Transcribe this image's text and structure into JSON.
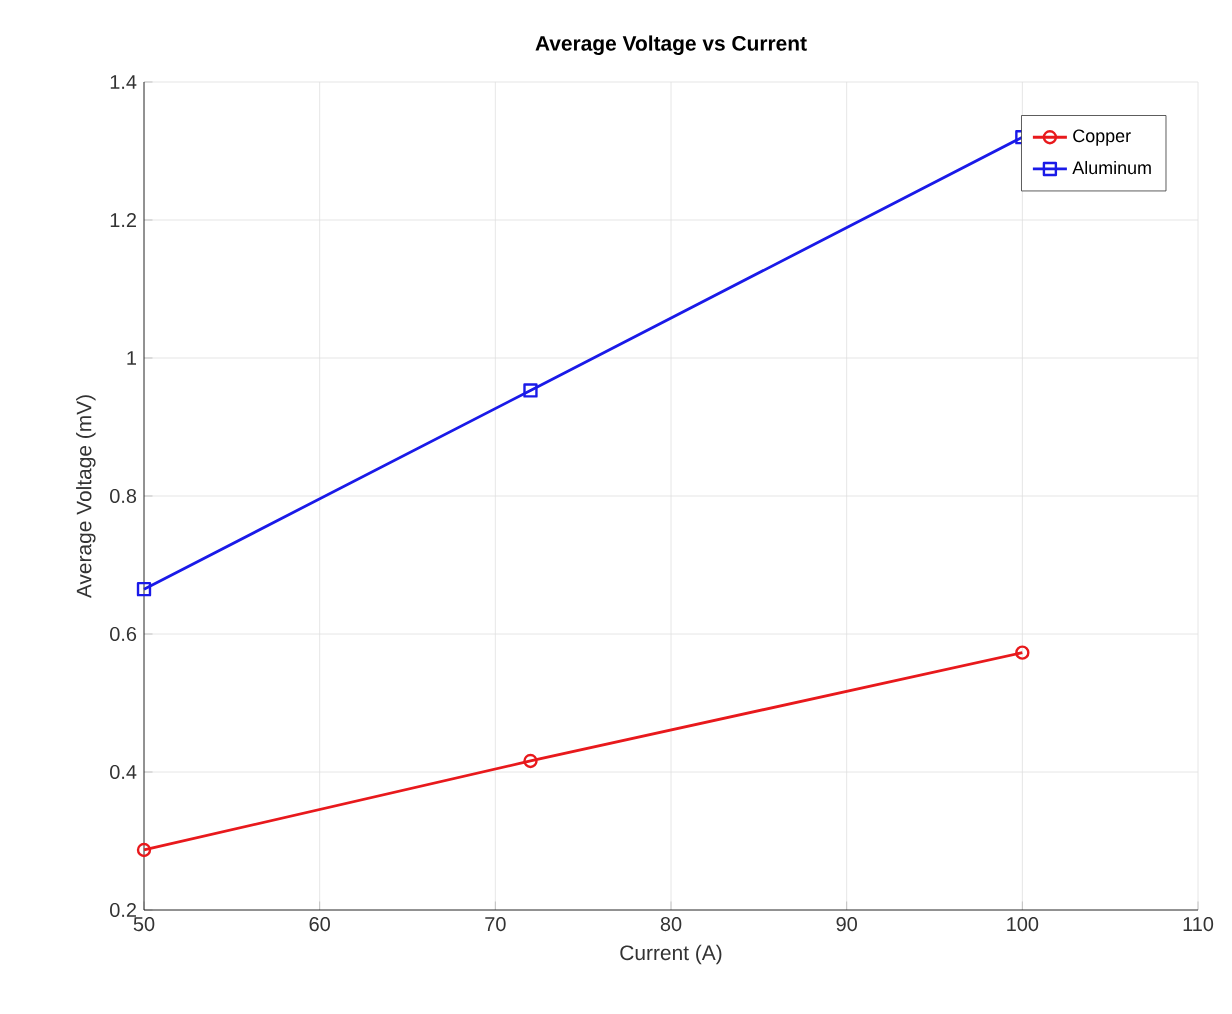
{
  "chart_data": {
    "type": "line",
    "title": "Average Voltage vs Current",
    "xlabel": "Current (A)",
    "ylabel": "Average Voltage (mV)",
    "x": [
      50,
      72,
      100
    ],
    "series": [
      {
        "name": "Copper",
        "color": "#e8191c",
        "marker": "circle",
        "values": [
          0.287,
          0.416,
          0.573
        ]
      },
      {
        "name": "Aluminum",
        "color": "#1a1ae8",
        "marker": "square",
        "values": [
          0.665,
          0.953,
          1.32
        ]
      }
    ],
    "xlim": [
      50,
      110
    ],
    "xticks": [
      50,
      60,
      70,
      80,
      90,
      100,
      110
    ],
    "ylim": [
      0.2,
      1.4
    ],
    "yticks": [
      0.2,
      0.4,
      0.6,
      0.8,
      1,
      1.2,
      1.4
    ],
    "grid": true,
    "legend": "top right",
    "line_style": "solid"
  }
}
